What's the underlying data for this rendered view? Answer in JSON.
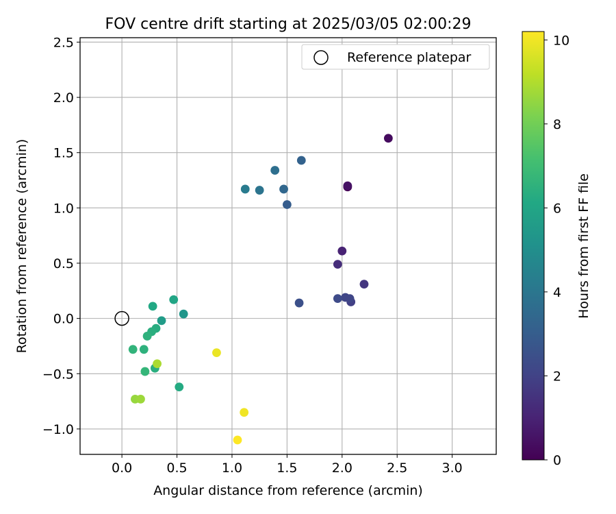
{
  "chart_data": {
    "type": "scatter",
    "title": "FOV centre drift starting at 2025/03/05 02:00:29",
    "xlabel": "Angular distance from reference (arcmin)",
    "ylabel": "Rotation from reference (arcmin)",
    "xlim": [
      -0.38,
      3.4
    ],
    "ylim": [
      -1.23,
      2.54
    ],
    "xticks": [
      0.0,
      0.5,
      1.0,
      1.5,
      2.0,
      2.5,
      3.0
    ],
    "xtick_labels": [
      "0.0",
      "0.5",
      "1.0",
      "1.5",
      "2.0",
      "2.5",
      "3.0"
    ],
    "yticks": [
      -1.0,
      -0.5,
      0.0,
      0.5,
      1.0,
      1.5,
      2.0,
      2.5
    ],
    "ytick_labels": [
      "−1.0",
      "−0.5",
      "0.0",
      "0.5",
      "1.0",
      "1.5",
      "2.0",
      "2.5"
    ],
    "grid": true,
    "legend": {
      "position": "top-right",
      "entries": [
        {
          "label": "Reference platepar",
          "marker": "open-circle"
        }
      ]
    },
    "reference_point": {
      "x": 0.0,
      "y": 0.0,
      "label": "Reference platepar"
    },
    "colorbar": {
      "label": "Hours from first FF file",
      "colormap": "viridis",
      "range": [
        0,
        10.2
      ],
      "ticks": [
        0,
        2,
        4,
        6,
        8,
        10
      ],
      "tick_labels": [
        "0",
        "2",
        "4",
        "6",
        "8",
        "10"
      ]
    },
    "points": [
      {
        "x": 2.05,
        "y": 1.19,
        "hours": 0.0
      },
      {
        "x": 2.42,
        "y": 1.63,
        "hours": 0.3
      },
      {
        "x": 2.05,
        "y": 1.2,
        "hours": 0.5
      },
      {
        "x": 2.0,
        "y": 0.61,
        "hours": 1.0
      },
      {
        "x": 1.96,
        "y": 0.49,
        "hours": 1.3
      },
      {
        "x": 2.2,
        "y": 0.31,
        "hours": 1.6
      },
      {
        "x": 2.08,
        "y": 0.15,
        "hours": 1.9
      },
      {
        "x": 2.03,
        "y": 0.19,
        "hours": 2.1
      },
      {
        "x": 1.96,
        "y": 0.18,
        "hours": 2.3
      },
      {
        "x": 2.07,
        "y": 0.18,
        "hours": 2.1
      },
      {
        "x": 1.61,
        "y": 0.14,
        "hours": 2.5
      },
      {
        "x": 1.5,
        "y": 1.03,
        "hours": 3.0
      },
      {
        "x": 1.63,
        "y": 1.43,
        "hours": 3.2
      },
      {
        "x": 1.47,
        "y": 1.17,
        "hours": 3.4
      },
      {
        "x": 1.39,
        "y": 1.34,
        "hours": 3.7
      },
      {
        "x": 1.25,
        "y": 1.16,
        "hours": 3.9
      },
      {
        "x": 1.12,
        "y": 1.17,
        "hours": 4.2
      },
      {
        "x": 0.56,
        "y": 0.04,
        "hours": 5.3
      },
      {
        "x": 0.36,
        "y": -0.02,
        "hours": 5.6
      },
      {
        "x": 0.47,
        "y": 0.17,
        "hours": 6.0
      },
      {
        "x": 0.28,
        "y": 0.11,
        "hours": 6.1
      },
      {
        "x": 0.31,
        "y": -0.09,
        "hours": 6.3
      },
      {
        "x": 0.27,
        "y": -0.12,
        "hours": 6.4
      },
      {
        "x": 0.23,
        "y": -0.16,
        "hours": 6.5
      },
      {
        "x": 0.1,
        "y": -0.28,
        "hours": 6.6
      },
      {
        "x": 0.2,
        "y": -0.28,
        "hours": 6.5
      },
      {
        "x": 0.21,
        "y": -0.48,
        "hours": 6.7
      },
      {
        "x": 0.3,
        "y": -0.45,
        "hours": 6.4
      },
      {
        "x": 0.52,
        "y": -0.62,
        "hours": 6.2
      },
      {
        "x": 0.32,
        "y": -0.41,
        "hours": 8.9
      },
      {
        "x": 0.12,
        "y": -0.73,
        "hours": 8.6
      },
      {
        "x": 0.17,
        "y": -0.73,
        "hours": 8.7
      },
      {
        "x": 0.86,
        "y": -0.31,
        "hours": 9.9
      },
      {
        "x": 1.11,
        "y": -0.85,
        "hours": 10.0
      },
      {
        "x": 1.05,
        "y": -1.1,
        "hours": 10.2
      }
    ]
  }
}
